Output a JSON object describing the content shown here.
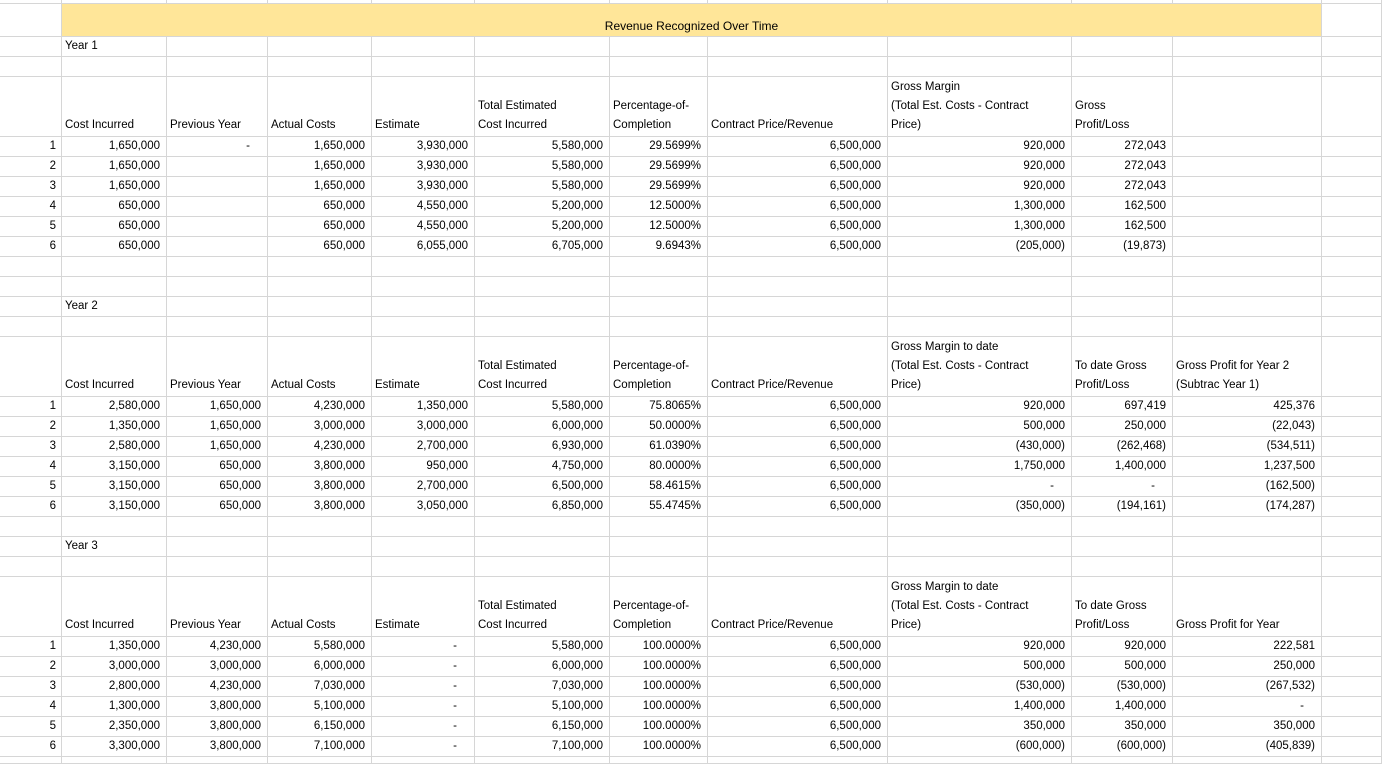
{
  "title": "Revenue Recognized Over Time",
  "colors": {
    "banner_bg": "#FFE699",
    "gridline": "#D6D6D6",
    "text": "#000000"
  },
  "sections": [
    {
      "label": "Year 1",
      "headers": [
        "Cost Incurred",
        "Previous Year",
        "Actual Costs",
        "Estimate",
        "Total Estimated\nCost Incurred",
        "Percentage-of-\nCompletion",
        "Contract Price/Revenue",
        "Gross Margin\n(Total Est. Costs - Contract\nPrice)",
        "Gross\nProfit/Loss",
        ""
      ],
      "rows": [
        [
          "1",
          "1,650,000",
          "-",
          "1,650,000",
          "3,930,000",
          "5,580,000",
          "29.5699%",
          "6,500,000",
          "920,000",
          "272,043",
          ""
        ],
        [
          "2",
          "1,650,000",
          "",
          "1,650,000",
          "3,930,000",
          "5,580,000",
          "29.5699%",
          "6,500,000",
          "920,000",
          "272,043",
          ""
        ],
        [
          "3",
          "1,650,000",
          "",
          "1,650,000",
          "3,930,000",
          "5,580,000",
          "29.5699%",
          "6,500,000",
          "920,000",
          "272,043",
          ""
        ],
        [
          "4",
          "650,000",
          "",
          "650,000",
          "4,550,000",
          "5,200,000",
          "12.5000%",
          "6,500,000",
          "1,300,000",
          "162,500",
          ""
        ],
        [
          "5",
          "650,000",
          "",
          "650,000",
          "4,550,000",
          "5,200,000",
          "12.5000%",
          "6,500,000",
          "1,300,000",
          "162,500",
          ""
        ],
        [
          "6",
          "650,000",
          "",
          "650,000",
          "6,055,000",
          "6,705,000",
          "9.6943%",
          "6,500,000",
          "(205,000)",
          "(19,873)",
          ""
        ]
      ]
    },
    {
      "label": "Year 2",
      "headers": [
        "Cost Incurred",
        "Previous Year",
        "Actual Costs",
        "Estimate",
        "Total Estimated\nCost Incurred",
        "Percentage-of-\nCompletion",
        "Contract Price/Revenue",
        "Gross Margin to date\n(Total Est. Costs - Contract\nPrice)",
        "To date Gross\nProfit/Loss",
        "Gross Profit for Year 2\n(Subtrac Year 1)"
      ],
      "rows": [
        [
          "1",
          "2,580,000",
          "1,650,000",
          "4,230,000",
          "1,350,000",
          "5,580,000",
          "75.8065%",
          "6,500,000",
          "920,000",
          "697,419",
          "425,376"
        ],
        [
          "2",
          "1,350,000",
          "1,650,000",
          "3,000,000",
          "3,000,000",
          "6,000,000",
          "50.0000%",
          "6,500,000",
          "500,000",
          "250,000",
          "(22,043)"
        ],
        [
          "3",
          "2,580,000",
          "1,650,000",
          "4,230,000",
          "2,700,000",
          "6,930,000",
          "61.0390%",
          "6,500,000",
          "(430,000)",
          "(262,468)",
          "(534,511)"
        ],
        [
          "4",
          "3,150,000",
          "650,000",
          "3,800,000",
          "950,000",
          "4,750,000",
          "80.0000%",
          "6,500,000",
          "1,750,000",
          "1,400,000",
          "1,237,500"
        ],
        [
          "5",
          "3,150,000",
          "650,000",
          "3,800,000",
          "2,700,000",
          "6,500,000",
          "58.4615%",
          "6,500,000",
          "-",
          "-",
          "(162,500)"
        ],
        [
          "6",
          "3,150,000",
          "650,000",
          "3,800,000",
          "3,050,000",
          "6,850,000",
          "55.4745%",
          "6,500,000",
          "(350,000)",
          "(194,161)",
          "(174,287)"
        ]
      ]
    },
    {
      "label": "Year 3",
      "headers": [
        "Cost Incurred",
        "Previous Year",
        "Actual Costs",
        "Estimate",
        "Total Estimated\nCost Incurred",
        "Percentage-of-\nCompletion",
        "Contract Price/Revenue",
        "Gross Margin to date\n(Total Est. Costs - Contract\nPrice)",
        "To date Gross\nProfit/Loss",
        "Gross Profit for Year"
      ],
      "rows": [
        [
          "1",
          "1,350,000",
          "4,230,000",
          "5,580,000",
          "-",
          "5,580,000",
          "100.0000%",
          "6,500,000",
          "920,000",
          "920,000",
          "222,581"
        ],
        [
          "2",
          "3,000,000",
          "3,000,000",
          "6,000,000",
          "-",
          "6,000,000",
          "100.0000%",
          "6,500,000",
          "500,000",
          "500,000",
          "250,000"
        ],
        [
          "3",
          "2,800,000",
          "4,230,000",
          "7,030,000",
          "-",
          "7,030,000",
          "100.0000%",
          "6,500,000",
          "(530,000)",
          "(530,000)",
          "(267,532)"
        ],
        [
          "4",
          "1,300,000",
          "3,800,000",
          "5,100,000",
          "-",
          "5,100,000",
          "100.0000%",
          "6,500,000",
          "1,400,000",
          "1,400,000",
          "-"
        ],
        [
          "5",
          "2,350,000",
          "3,800,000",
          "6,150,000",
          "-",
          "6,150,000",
          "100.0000%",
          "6,500,000",
          "350,000",
          "350,000",
          "350,000"
        ],
        [
          "6",
          "3,300,000",
          "3,800,000",
          "7,100,000",
          "-",
          "7,100,000",
          "100.0000%",
          "6,500,000",
          "(600,000)",
          "(600,000)",
          "(405,839)"
        ]
      ]
    }
  ]
}
